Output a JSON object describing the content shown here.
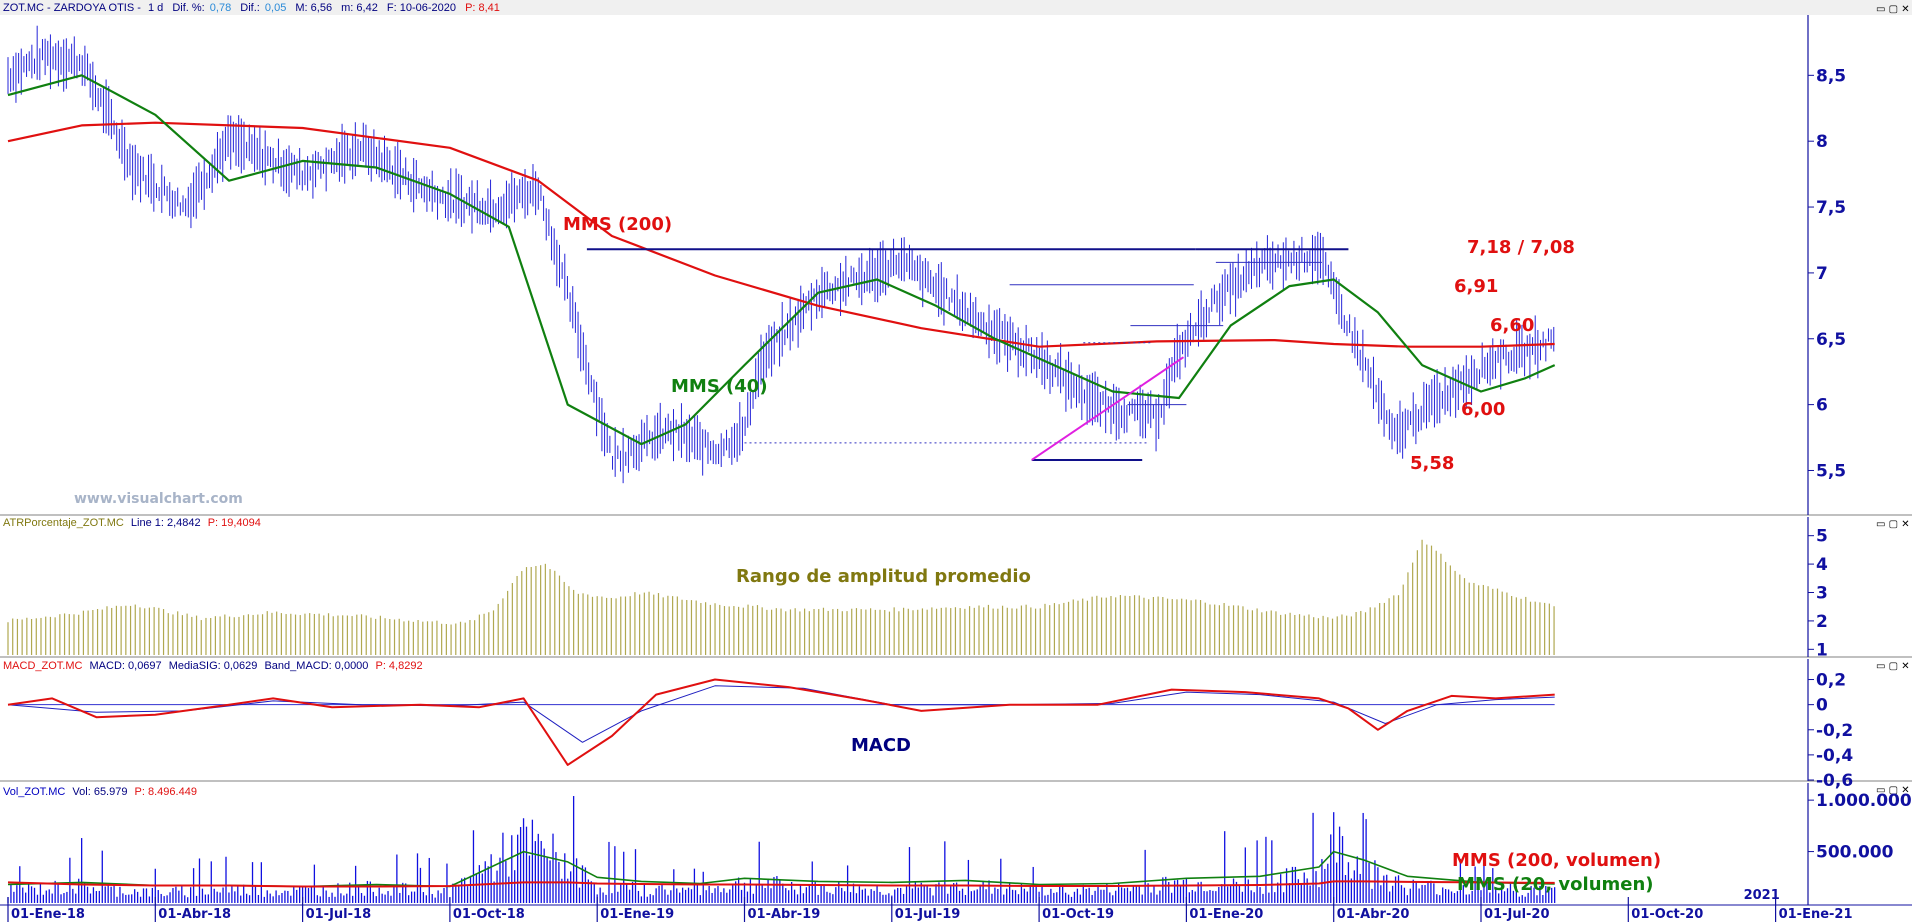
{
  "header": {
    "symbol": "ZOT.MC - ZARDOYA OTIS - ",
    "interval": "1 d",
    "dif_pct_label": "Dif. %:",
    "dif_pct": "0,78",
    "dif_label": "Dif.:",
    "dif": "0,05",
    "max": "M: 6,56",
    "min": "m: 6,42",
    "date": "F: 10-06-2020",
    "price": "P: 8,41"
  },
  "watermark": "www.visualchart.com",
  "panels": {
    "atr": {
      "name": "ATRPorcentaje_ZOT.MC",
      "line": "Line 1: 2,4842",
      "price": "P: 19,4094",
      "caption": "Rango de amplitud promedio"
    },
    "macd": {
      "name": "MACD_ZOT.MC",
      "macd": "MACD: 0,0697",
      "sig": "MediaSIG: 0,0629",
      "band": "Band_MACD: 0,0000",
      "price": "P: 4,8292",
      "caption": "MACD"
    },
    "vol": {
      "name": "Vol_ZOT.MC",
      "vol": "Vol: 65.979",
      "price": "P: 8.496.449",
      "caption1": "MMS (200, volumen)",
      "caption2": "MMS (20, volumen)"
    }
  },
  "annotations": {
    "mms200": "MMS (200)",
    "mms40": "MMS (40)",
    "r718": "7,18 / 7,08",
    "r691": "6,91",
    "r660": "6,60",
    "s600": "6,00",
    "s558": "5,58"
  },
  "colors": {
    "price": "#2424d8",
    "mms200": "#e01010",
    "mms40": "#108010",
    "atr_bars": "#b0a850",
    "trend": "#e020e0",
    "axis": "#1010a0",
    "caption_olive": "#807810"
  },
  "chart_data": [
    {
      "type": "line",
      "title": "",
      "x_ticks": [
        "01-Ene-18",
        "01-Abr-18",
        "01-Jul-18",
        "01-Oct-18",
        "01-Ene-19",
        "01-Abr-19",
        "01-Jul-19",
        "01-Oct-19",
        "01-Ene-20",
        "01-Abr-20",
        "01-Jul-20",
        "01-Oct-20",
        "01-Ene-21"
      ],
      "extra_x_label": "2021",
      "y_ticks": [
        "8,5",
        "8",
        "7,5",
        "7",
        "6,5",
        "6",
        "5,5"
      ],
      "ylim": [
        5.2,
        8.92
      ],
      "series": [
        {
          "name": "ZOT.MC",
          "values_x": [
            0,
            0.25,
            0.5,
            0.85,
            1.2,
            1.5,
            2.0,
            2.4,
            2.8,
            3.0,
            3.3,
            3.6,
            4.1,
            4.5,
            4.8,
            5.0,
            5.1,
            5.5,
            5.9,
            6.05,
            6.4,
            6.7,
            7.0,
            7.4,
            7.8,
            7.95,
            8.2,
            8.5,
            8.9,
            9.0,
            9.25,
            9.4,
            9.6,
            9.9,
            10.1,
            10.3,
            10.5
          ],
          "values_y": [
            8.5,
            8.65,
            8.6,
            7.8,
            7.5,
            8.0,
            7.75,
            7.95,
            7.65,
            7.55,
            7.5,
            7.65,
            5.6,
            5.8,
            5.65,
            5.8,
            6.3,
            6.85,
            7.0,
            7.1,
            6.8,
            6.55,
            6.35,
            6.0,
            5.9,
            6.4,
            6.8,
            7.05,
            7.15,
            6.85,
            6.2,
            5.75,
            5.95,
            6.2,
            6.35,
            6.4,
            6.5
          ]
        },
        {
          "name": "MMS (200)",
          "values_x": [
            0,
            0.5,
            1.0,
            2.0,
            3.0,
            3.6,
            4.1,
            4.8,
            5.5,
            6.2,
            7.0,
            7.8,
            8.6,
            9.0,
            9.5,
            10.0,
            10.5
          ],
          "values_y": [
            8.0,
            8.12,
            8.14,
            8.1,
            7.95,
            7.7,
            7.28,
            6.98,
            6.75,
            6.58,
            6.44,
            6.48,
            6.49,
            6.46,
            6.44,
            6.44,
            6.46
          ]
        },
        {
          "name": "MMS (40)",
          "values_x": [
            0,
            0.5,
            1.0,
            1.5,
            2.0,
            2.5,
            3.0,
            3.4,
            3.8,
            4.3,
            4.6,
            5.0,
            5.5,
            5.9,
            6.3,
            6.7,
            7.0,
            7.5,
            7.95,
            8.3,
            8.7,
            9.0,
            9.3,
            9.6,
            10.0,
            10.3,
            10.5
          ],
          "values_y": [
            8.35,
            8.5,
            8.2,
            7.7,
            7.85,
            7.8,
            7.6,
            7.35,
            6.0,
            5.7,
            5.85,
            6.3,
            6.85,
            6.95,
            6.75,
            6.5,
            6.35,
            6.1,
            6.05,
            6.6,
            6.9,
            6.95,
            6.7,
            6.3,
            6.1,
            6.2,
            6.3
          ]
        }
      ],
      "levels": [
        7.18,
        7.08,
        6.91,
        6.6,
        6.0,
        5.58
      ]
    },
    {
      "type": "bar",
      "name": "ATRPorcentaje_ZOT.MC",
      "y_ticks": [
        "5",
        "4",
        "3",
        "2",
        "1"
      ],
      "ylim": [
        0.8,
        5.2
      ],
      "x": [
        0,
        0.5,
        0.85,
        1.3,
        1.8,
        2.3,
        2.8,
        3.1,
        3.3,
        3.5,
        3.65,
        3.85,
        4.1,
        4.3,
        4.8,
        5.3,
        6.0,
        6.5,
        7.0,
        7.5,
        8.1,
        8.6,
        9.0,
        9.2,
        9.45,
        9.6,
        9.75,
        9.9,
        10.1,
        10.3,
        10.5
      ],
      "values": [
        2.0,
        2.3,
        2.6,
        2.1,
        2.3,
        2.2,
        2.0,
        1.9,
        2.4,
        3.9,
        4.0,
        3.0,
        2.8,
        3.0,
        2.6,
        2.4,
        2.4,
        2.5,
        2.5,
        2.9,
        2.7,
        2.3,
        2.1,
        2.3,
        3.0,
        4.9,
        4.2,
        3.4,
        3.1,
        2.8,
        2.5
      ]
    },
    {
      "type": "line",
      "name": "MACD_ZOT.MC",
      "y_ticks": [
        "0,2",
        "0",
        "-0,2",
        "-0,4",
        "-0,6"
      ],
      "ylim": [
        -0.6,
        0.26
      ],
      "series": [
        {
          "name": "MACD",
          "x": [
            0,
            0.3,
            0.6,
            1.0,
            1.5,
            1.8,
            2.2,
            2.8,
            3.2,
            3.5,
            3.8,
            4.1,
            4.4,
            4.8,
            5.3,
            5.8,
            6.2,
            6.8,
            7.4,
            7.9,
            8.4,
            8.9,
            9.1,
            9.3,
            9.5,
            9.8,
            10.1,
            10.5
          ],
          "values": [
            0.0,
            0.05,
            -0.1,
            -0.08,
            0.0,
            0.05,
            -0.02,
            0.0,
            -0.02,
            0.05,
            -0.48,
            -0.25,
            0.08,
            0.2,
            0.14,
            0.04,
            -0.05,
            0.0,
            0.0,
            0.12,
            0.1,
            0.05,
            -0.03,
            -0.2,
            -0.05,
            0.07,
            0.05,
            0.08
          ]
        },
        {
          "name": "MediaSIG",
          "x": [
            0,
            0.6,
            1.2,
            1.8,
            2.4,
            3.0,
            3.5,
            3.9,
            4.3,
            4.8,
            5.4,
            6.0,
            6.8,
            7.5,
            8.0,
            8.5,
            9.0,
            9.35,
            9.7,
            10.1,
            10.5
          ],
          "values": [
            0.0,
            -0.06,
            -0.05,
            0.03,
            0.0,
            -0.01,
            0.02,
            -0.3,
            -0.05,
            0.15,
            0.13,
            0.0,
            0.0,
            0.01,
            0.1,
            0.08,
            0.02,
            -0.15,
            0.0,
            0.04,
            0.06
          ]
        }
      ]
    },
    {
      "type": "bar",
      "name": "Vol_ZOT.MC",
      "y_ticks": [
        "1.000.000",
        "500.000"
      ],
      "ylim": [
        0,
        1050000
      ],
      "x": [
        0,
        0.5,
        1.0,
        1.5,
        2.0,
        2.5,
        3.0,
        3.5,
        3.8,
        4.0,
        4.3,
        4.7,
        5.0,
        5.5,
        6.0,
        6.5,
        7.0,
        7.5,
        8.0,
        8.5,
        8.9,
        9.0,
        9.2,
        9.5,
        10.0,
        10.5
      ],
      "values": [
        180000,
        250000,
        150000,
        200000,
        180000,
        220000,
        160000,
        900000,
        600000,
        250000,
        200000,
        180000,
        300000,
        220000,
        200000,
        250000,
        180000,
        200000,
        300000,
        250000,
        450000,
        950000,
        500000,
        250000,
        200000,
        180000
      ],
      "mms200": [
        200000,
        180000,
        170000,
        170000,
        160000,
        160000,
        165000,
        200000,
        200000,
        190000,
        185000,
        180000,
        180000,
        175000,
        170000,
        170000,
        165000,
        165000,
        170000,
        175000,
        190000,
        210000,
        210000,
        205000,
        200000,
        195000
      ],
      "mms20": [
        180000,
        200000,
        170000,
        170000,
        160000,
        180000,
        160000,
        500000,
        400000,
        250000,
        210000,
        190000,
        240000,
        210000,
        200000,
        220000,
        180000,
        190000,
        240000,
        260000,
        350000,
        500000,
        420000,
        260000,
        200000,
        185000
      ]
    }
  ]
}
